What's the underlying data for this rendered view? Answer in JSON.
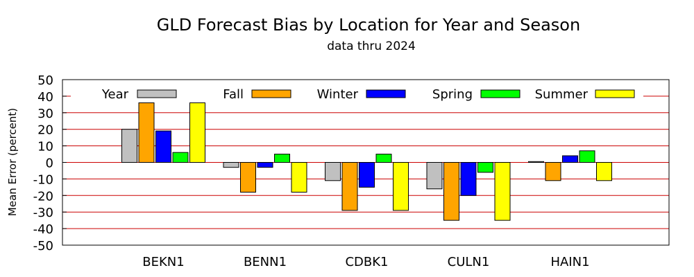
{
  "chart_data": {
    "type": "bar",
    "title": "GLD Forecast Bias by Location for Year and Season",
    "subtitle": "data thru 2024",
    "xlabel": "",
    "ylabel": "Mean Error (percent)",
    "ylim": [
      -50,
      50
    ],
    "yticks": [
      50,
      40,
      30,
      20,
      10,
      0,
      -10,
      -20,
      -30,
      -40,
      -50
    ],
    "gridlines": [
      40,
      30,
      20,
      10,
      0,
      -10,
      -20,
      -30,
      -40
    ],
    "grid_color": "#cc0000",
    "legend_position": "top",
    "categories": [
      "BEKN1",
      "BENN1",
      "CDBK1",
      "CULN1",
      "HAIN1"
    ],
    "series": [
      {
        "name": "Year",
        "color": "#c0c0c0",
        "values": [
          20,
          -3,
          -11,
          -16,
          0.5
        ]
      },
      {
        "name": "Fall",
        "color": "#ffa500",
        "values": [
          36,
          -18,
          -29,
          -35,
          -11
        ]
      },
      {
        "name": "Winter",
        "color": "#0000ff",
        "values": [
          19,
          -3,
          -15,
          -20,
          4
        ]
      },
      {
        "name": "Spring",
        "color": "#00ff00",
        "values": [
          6,
          5,
          5,
          -6,
          7
        ]
      },
      {
        "name": "Summer",
        "color": "#ffff00",
        "values": [
          36,
          -18,
          -29,
          -35,
          -11
        ]
      }
    ]
  }
}
